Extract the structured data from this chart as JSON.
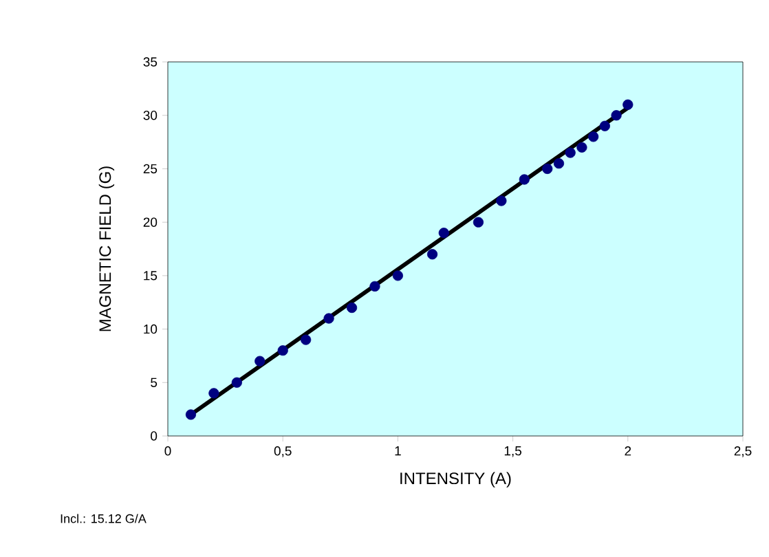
{
  "chart_data": {
    "type": "scatter",
    "xlabel": "INTENSITY  (A)",
    "ylabel": "MAGNETIC FIELD (G)",
    "annotations": [
      "Incl.: 15.12 G/A"
    ],
    "xlim": [
      0,
      2.5
    ],
    "ylim": [
      0,
      35
    ],
    "xticks": [
      0,
      {
        "value": 0.5,
        "label": "0,5"
      },
      1,
      {
        "value": 1.5,
        "label": "1,5"
      },
      2,
      {
        "value": 2.5,
        "label": "2,5"
      }
    ],
    "yticks": [
      0,
      5,
      10,
      15,
      20,
      25,
      30,
      35
    ],
    "grid": false,
    "series": [
      {
        "color": "#000080",
        "marker": "circle",
        "x": [
          0.1,
          0.2,
          0.3,
          0.4,
          0.5,
          0.6,
          0.7,
          0.8,
          0.9,
          1.0,
          1.15,
          1.2,
          1.35,
          1.45,
          1.55,
          1.65,
          1.7,
          1.75,
          1.8,
          1.85,
          1.9,
          1.95,
          2.0
        ],
        "values": [
          2,
          4,
          5,
          7,
          8,
          9,
          11,
          12,
          14,
          15,
          17,
          19,
          20,
          22,
          24,
          25,
          25.5,
          26.5,
          27,
          28,
          29,
          30,
          31
        ]
      },
      {
        "type": "line",
        "color": "#000000",
        "marker": "none",
        "line_style": "solid",
        "x": [
          0.1,
          2.0
        ],
        "values": [
          2.0,
          30.7
        ]
      }
    ]
  }
}
